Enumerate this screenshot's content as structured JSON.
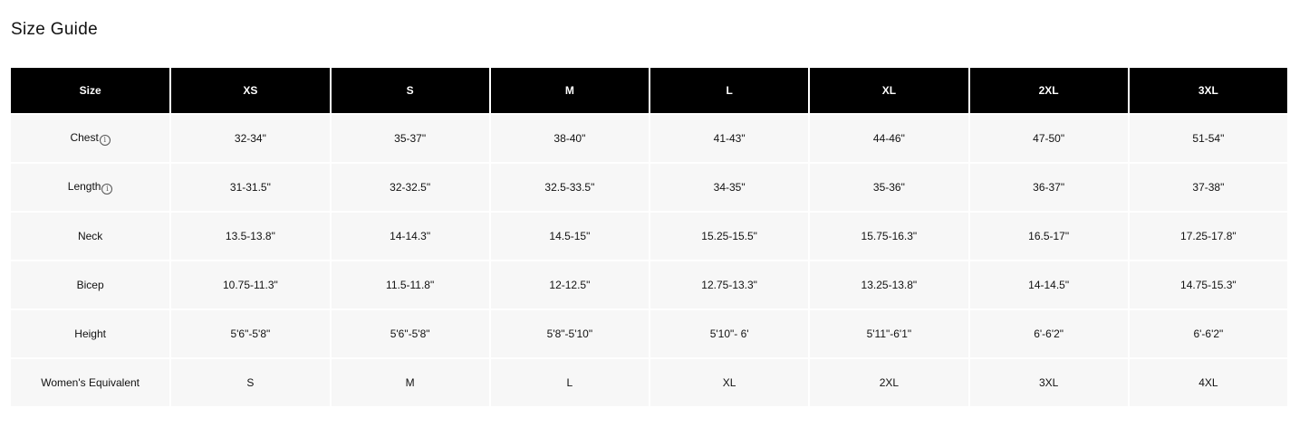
{
  "title": "Size Guide",
  "headers": [
    "Size",
    "XS",
    "S",
    "M",
    "L",
    "XL",
    "2XL",
    "3XL"
  ],
  "rows": [
    {
      "label": "Chest",
      "info": true,
      "values": [
        "32-34\"",
        "35-37\"",
        "38-40\"",
        "41-43\"",
        "44-46\"",
        "47-50\"",
        "51-54\""
      ]
    },
    {
      "label": "Length",
      "info": true,
      "values": [
        "31-31.5\"",
        "32-32.5\"",
        "32.5-33.5\"",
        "34-35\"",
        "35-36\"",
        "36-37\"",
        "37-38\""
      ]
    },
    {
      "label": "Neck",
      "values": [
        "13.5-13.8\"",
        "14-14.3\"",
        "14.5-15\"",
        "15.25-15.5\"",
        "15.75-16.3\"",
        "16.5-17\"",
        "17.25-17.8\""
      ]
    },
    {
      "label": "Bicep",
      "values": [
        "10.75-11.3\"",
        "11.5-11.8\"",
        "12-12.5\"",
        "12.75-13.3\"",
        "13.25-13.8\"",
        "14-14.5\"",
        "14.75-15.3\""
      ]
    },
    {
      "label": "Height",
      "values": [
        "5'6\"-5'8\"",
        "5'6\"-5'8\"",
        "5'8\"-5'10\"",
        "5'10\"- 6'",
        "5'11\"-6'1\"",
        "6'-6'2\"",
        "6'-6'2\""
      ]
    },
    {
      "label": "Women's Equivalent",
      "values": [
        "S",
        "M",
        "L",
        "XL",
        "2XL",
        "3XL",
        "4XL"
      ]
    }
  ]
}
